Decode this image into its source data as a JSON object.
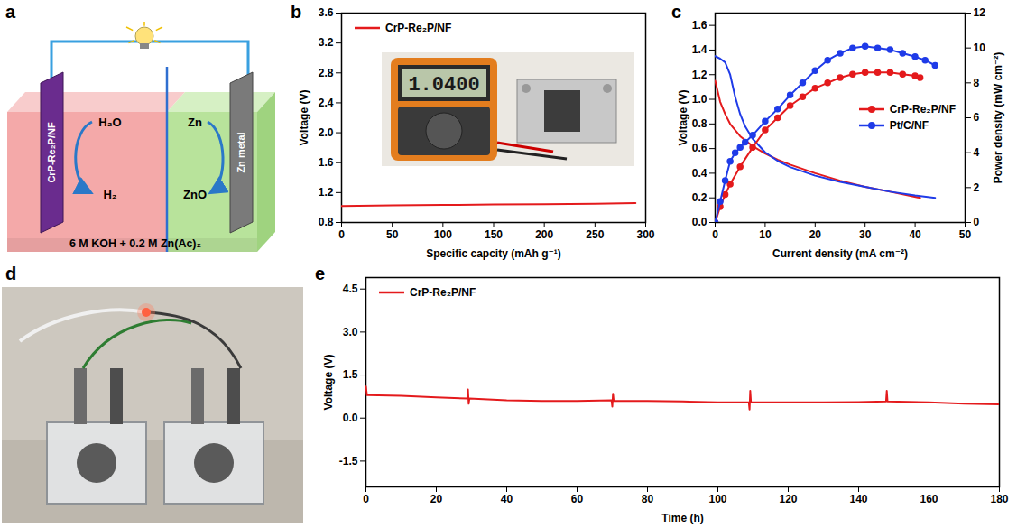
{
  "diagram": {
    "panel_label": "a",
    "electrode_left": "CrP-Re₂P/NF",
    "electrode_right": "Zn metal",
    "left_reaction": {
      "from": "H₂O",
      "to": "H₂"
    },
    "right_reaction": {
      "from": "Zn",
      "to": "ZnO"
    },
    "electrolyte": "6 M KOH + 0.2 M Zn(Ac)₂"
  },
  "photo": {
    "panel_label": "d"
  },
  "chart_data": [
    {
      "panel_label": "b",
      "type": "line",
      "x_label": "Specific capcity (mAh g⁻¹)",
      "y_label": "Voltage (V)",
      "xlim": [
        0,
        300
      ],
      "xticks": [
        0,
        50,
        100,
        150,
        200,
        250,
        300
      ],
      "ylim": [
        0.8,
        3.6
      ],
      "yticks": [
        0.8,
        1.2,
        1.6,
        {
          "value": 2,
          "label": "2.0"
        },
        2.4,
        2.8,
        3.2,
        3.6
      ],
      "legend": "top-left",
      "inset_display": "1.0400",
      "series": [
        {
          "name": "CrP-Re₂P/NF",
          "color": "#e41a1c",
          "x": [
            0,
            50,
            100,
            150,
            200,
            250,
            290
          ],
          "values": [
            1.02,
            1.03,
            1.035,
            1.04,
            1.045,
            1.05,
            1.06
          ]
        }
      ]
    },
    {
      "panel_label": "c",
      "type": "line",
      "x_label": "Current density (mA cm⁻²)",
      "y_label": "Voltage (V)",
      "y2_label": "Power density (mW cm⁻²)",
      "xlim": [
        0,
        50
      ],
      "xticks": [
        0,
        10,
        20,
        30,
        40,
        50
      ],
      "ylim": [
        0,
        1.7
      ],
      "yticks": [
        {
          "value": 0,
          "label": "0.0"
        },
        0.2,
        0.4,
        0.6,
        0.8,
        {
          "value": 1,
          "label": "1.0"
        },
        1.2,
        1.4,
        1.6
      ],
      "y2lim": [
        0,
        12
      ],
      "y2ticks": [
        0,
        2,
        4,
        6,
        8,
        10,
        12
      ],
      "legend": "right",
      "series": [
        {
          "name": "CrP-Re₂P/NF",
          "color": "#e41a1c",
          "x": [
            0,
            1,
            2,
            3,
            5,
            7.5,
            10,
            12.5,
            15,
            20,
            25,
            30,
            35,
            41
          ],
          "values": [
            1.15,
            0.98,
            0.88,
            0.8,
            0.7,
            0.62,
            0.56,
            0.51,
            0.47,
            0.4,
            0.34,
            0.29,
            0.25,
            0.2
          ]
        },
        {
          "name": "CrP-Re₂P/NF",
          "color": "#e41a1c",
          "axis": "y2",
          "marker": "circle",
          "x": [
            0,
            1,
            2,
            3,
            5,
            7.5,
            10,
            12.5,
            15,
            17.5,
            20,
            22.5,
            25,
            27.5,
            30,
            32.5,
            35,
            37.5,
            40,
            41
          ],
          "values": [
            0,
            0.9,
            1.6,
            2.2,
            3.2,
            4.3,
            5.3,
            6.0,
            6.7,
            7.2,
            7.7,
            8.0,
            8.3,
            8.5,
            8.6,
            8.6,
            8.6,
            8.5,
            8.4,
            8.3
          ]
        },
        {
          "name": "Pt/C/NF",
          "color": "#1f3be8",
          "x": [
            0,
            1,
            2,
            3,
            4,
            5,
            6,
            7.5,
            10,
            12.5,
            15,
            20,
            25,
            30,
            35,
            40,
            44
          ],
          "values": [
            1.35,
            1.33,
            1.3,
            1.2,
            1.02,
            0.88,
            0.78,
            0.68,
            0.57,
            0.5,
            0.45,
            0.38,
            0.33,
            0.29,
            0.25,
            0.22,
            0.2
          ]
        },
        {
          "name": "Pt/C/NF",
          "color": "#1f3be8",
          "axis": "y2",
          "marker": "circle",
          "x": [
            0,
            1,
            2,
            3,
            4,
            5,
            6,
            7.5,
            10,
            12.5,
            15,
            17.5,
            20,
            22.5,
            25,
            27.5,
            30,
            32.5,
            35,
            37.5,
            40,
            42,
            44
          ],
          "values": [
            0,
            1.2,
            2.4,
            3.5,
            4.0,
            4.3,
            4.6,
            5.0,
            5.8,
            6.5,
            7.3,
            8.0,
            8.7,
            9.3,
            9.7,
            10.0,
            10.1,
            10.0,
            9.9,
            9.7,
            9.5,
            9.3,
            9.0
          ]
        }
      ]
    },
    {
      "panel_label": "e",
      "type": "line",
      "x_label": "Time (h)",
      "y_label": "Voltage (V)",
      "xlim": [
        0,
        180
      ],
      "xticks": [
        0,
        20,
        40,
        60,
        80,
        100,
        120,
        140,
        160,
        180
      ],
      "ylim": [
        -2.4,
        4.9
      ],
      "yticks": [
        -1.5,
        {
          "value": 0,
          "label": "0.0"
        },
        1.5,
        {
          "value": 3,
          "label": "3.0"
        },
        4.5
      ],
      "legend": "top-left",
      "series": [
        {
          "name": "CrP-Re₂P/NF",
          "color": "#e41a1c",
          "x": [
            0,
            0.3,
            10,
            20,
            28.8,
            29,
            29.2,
            29.4,
            40,
            50,
            60,
            69.8,
            70,
            70.2,
            70.4,
            80,
            90,
            100,
            108.8,
            109,
            109.2,
            109.4,
            120,
            130,
            140,
            147.8,
            148,
            148.2,
            160,
            170,
            180
          ],
          "values": [
            1.1,
            0.8,
            0.78,
            0.72,
            0.68,
            1.0,
            0.5,
            0.68,
            0.62,
            0.6,
            0.6,
            0.62,
            0.4,
            0.85,
            0.6,
            0.6,
            0.58,
            0.55,
            0.55,
            0.3,
            0.95,
            0.55,
            0.55,
            0.55,
            0.56,
            0.58,
            0.95,
            0.58,
            0.55,
            0.5,
            0.48
          ]
        }
      ]
    }
  ]
}
